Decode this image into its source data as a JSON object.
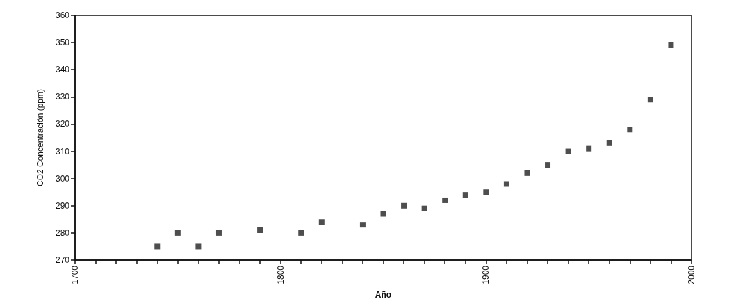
{
  "chart_data": {
    "type": "scatter",
    "xlabel": "Año",
    "ylabel": "CO2 Concentración (ppm)",
    "x": [
      1740,
      1750,
      1760,
      1770,
      1790,
      1810,
      1820,
      1840,
      1850,
      1860,
      1870,
      1880,
      1890,
      1900,
      1910,
      1920,
      1930,
      1940,
      1950,
      1960,
      1970,
      1980,
      1990
    ],
    "values": [
      275,
      280,
      275,
      280,
      281,
      280,
      284,
      283,
      287,
      290,
      289,
      292,
      294,
      295,
      298,
      302,
      305,
      310,
      311,
      313,
      318,
      329,
      349
    ],
    "color": "#222222",
    "marker": "square",
    "grid": false,
    "xlim": [
      1700,
      2000
    ],
    "ylim": [
      270,
      360
    ],
    "xticks": [
      1700,
      {
        "value": 1710,
        "label": null
      },
      {
        "value": 1720,
        "label": null
      },
      {
        "value": 1730,
        "label": null
      },
      {
        "value": 1740,
        "label": null
      },
      {
        "value": 1750,
        "label": null
      },
      {
        "value": 1760,
        "label": null
      },
      {
        "value": 1770,
        "label": null
      },
      {
        "value": 1780,
        "label": null
      },
      {
        "value": 1790,
        "label": null
      },
      1800,
      {
        "value": 1810,
        "label": null
      },
      {
        "value": 1820,
        "label": null
      },
      {
        "value": 1830,
        "label": null
      },
      {
        "value": 1840,
        "label": null
      },
      {
        "value": 1850,
        "label": null
      },
      {
        "value": 1860,
        "label": null
      },
      {
        "value": 1870,
        "label": null
      },
      {
        "value": 1880,
        "label": null
      },
      {
        "value": 1890,
        "label": null
      },
      1900,
      {
        "value": 1910,
        "label": null
      },
      {
        "value": 1920,
        "label": null
      },
      {
        "value": 1930,
        "label": null
      },
      {
        "value": 1940,
        "label": null
      },
      {
        "value": 1950,
        "label": null
      },
      {
        "value": 1960,
        "label": null
      },
      {
        "value": 1970,
        "label": null
      },
      {
        "value": 1980,
        "label": null
      },
      {
        "value": 1990,
        "label": null
      },
      2000
    ],
    "yticks": [
      270,
      280,
      290,
      300,
      310,
      320,
      330,
      340,
      350,
      360
    ]
  }
}
